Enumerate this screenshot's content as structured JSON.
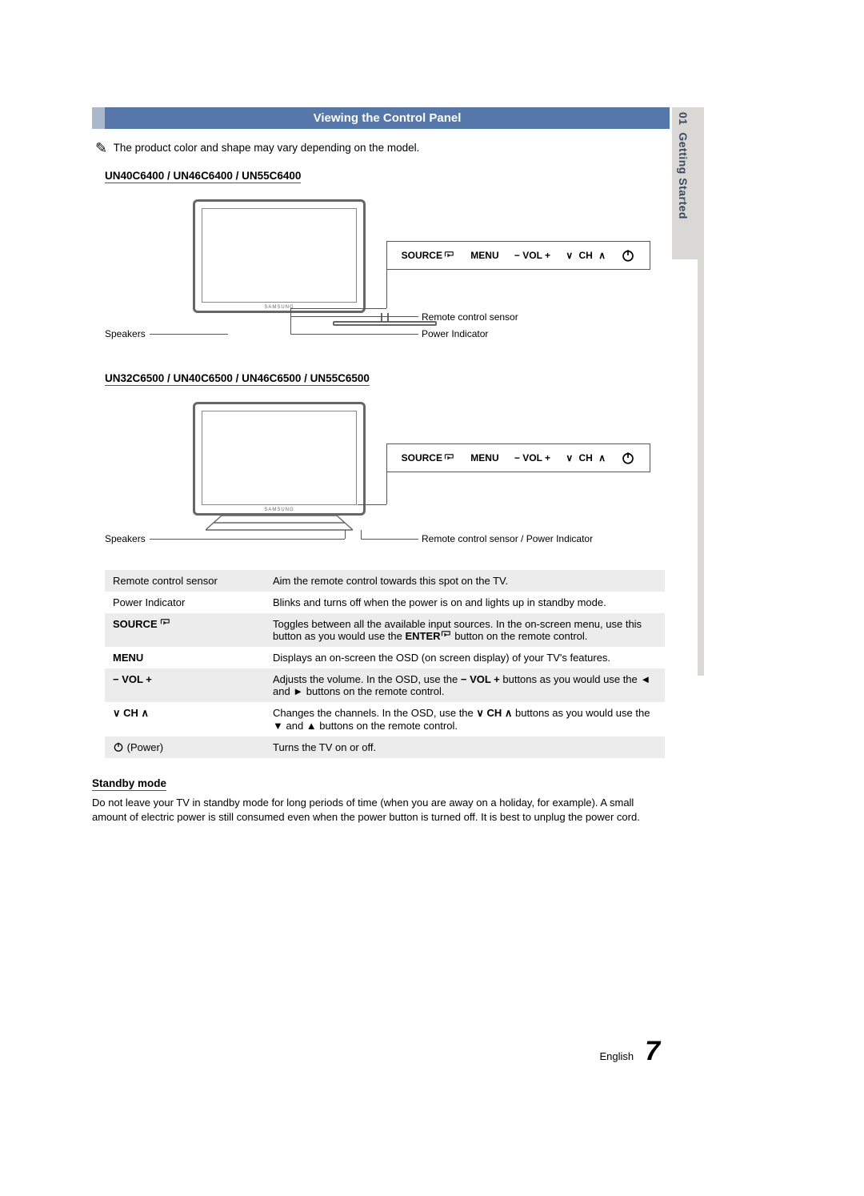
{
  "section_number": "01",
  "section_title": "Getting Started",
  "title_bar": "Viewing the Control Panel",
  "note": "The product color and shape may vary depending on the model.",
  "model_group_1": "UN40C6400 / UN46C6400 / UN55C6400",
  "model_group_2": "UN32C6500 / UN40C6500 / UN46C6500 / UN55C6500",
  "ctrl_labels": {
    "source": "SOURCE",
    "menu": "MENU",
    "vol": "− VOL +",
    "ch_up": "∧",
    "ch_dn": "∨",
    "ch": "CH"
  },
  "diagram1": {
    "speakers": "Speakers",
    "remote_sensor": "Remote control sensor",
    "power_ind": "Power Indicator"
  },
  "diagram2": {
    "speakers": "Speakers",
    "sensor_power": "Remote control sensor / Power Indicator"
  },
  "table": [
    {
      "label_text": "Remote control sensor",
      "label_html": "Remote control sensor",
      "desc": "Aim the remote control towards this spot on the TV."
    },
    {
      "label_text": "Power Indicator",
      "label_html": "Power Indicator",
      "desc": "Blinks and turns off when the power is on and lights up in standby mode."
    },
    {
      "label_text": "SOURCE",
      "label_bold": true,
      "icon": "enter",
      "desc_parts": [
        "Toggles between all the available input sources. In the on-screen menu, use this button as you would use the ",
        "ENTER",
        " button on the remote control."
      ],
      "desc_bold_idx": 1,
      "desc_icon_after_bold": "enter"
    },
    {
      "label_text": "MENU",
      "label_bold": true,
      "desc": "Displays an on-screen the OSD (on screen display) of your TV's features."
    },
    {
      "label_text": "− VOL +",
      "label_bold": true,
      "desc_parts": [
        "Adjusts the volume. In the OSD, use the ",
        "− VOL +",
        " buttons as you would use the ◄ and ► buttons on the remote control."
      ],
      "desc_bold_idx": 1
    },
    {
      "label_text": "CH",
      "label_bold": true,
      "chv": true,
      "desc_parts": [
        "Changes the channels. In the OSD, use the ",
        "∨ CH ∧",
        " buttons as you would use the ▼ and ▲ buttons on the remote control."
      ],
      "desc_bold_idx": 1,
      "desc_chv": true
    },
    {
      "label_text": "(Power)",
      "icon": "power",
      "desc": "Turns the TV on or off."
    }
  ],
  "standby_heading": "Standby mode",
  "standby_text": "Do not leave your TV in standby mode for long periods of time (when you are away on a holiday, for example). A small amount of electric power is still consumed even when the power button is turned off. It is best to unplug the power cord.",
  "footer_lang": "English",
  "footer_page": "7",
  "colors": {
    "title_bg": "#5577aa",
    "title_accent": "#aab8cc",
    "tab_bg": "#d9d8d4",
    "tab_text": "#3a4a63",
    "row_alt": "#ececec"
  }
}
